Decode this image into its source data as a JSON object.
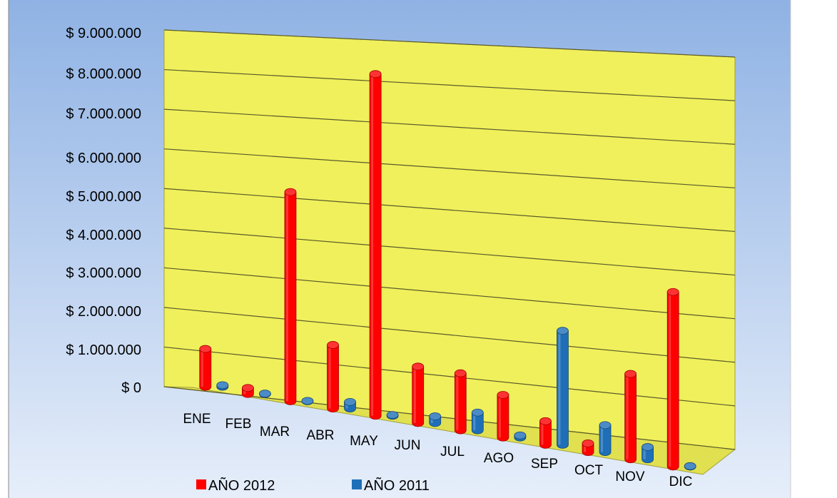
{
  "chart_data": {
    "type": "bar",
    "three_d": true,
    "categories": [
      "ENE",
      "FEB",
      "MAR",
      "ABR",
      "MAY",
      "JUN",
      "JUL",
      "AGO",
      "SEP",
      "OCT",
      "NOV",
      "DIC"
    ],
    "series": [
      {
        "name": "AÑO 2012",
        "color": "#ff0000",
        "values": [
          950000,
          150000,
          5150000,
          1550000,
          8250000,
          1350000,
          1350000,
          1000000,
          550000,
          200000,
          1950000,
          3950000
        ]
      },
      {
        "name": "AÑO 2011",
        "color": "#1f6fb8",
        "values": [
          40000,
          10000,
          10000,
          160000,
          20000,
          160000,
          420000,
          50000,
          2650000,
          620000,
          280000,
          10000
        ]
      }
    ],
    "ylim": [
      0,
      9000000
    ],
    "yticks": [
      "$ 0",
      "$ 1.000.000",
      "$ 2.000.000",
      "$ 3.000.000",
      "$ 4.000.000",
      "$ 5.000.000",
      "$ 6.000.000",
      "$ 7.000.000",
      "$ 8.000.000",
      "$ 9.000.000"
    ],
    "title": "",
    "xlabel": "",
    "ylabel": "",
    "grid": true,
    "legend_position": "bottom",
    "colors": {
      "background_top": "#8fb2e4",
      "background_bottom": "#e6eefa",
      "wall": "#f0f05c",
      "floor": "#e0e050",
      "grid": "#5a5a2a"
    }
  }
}
